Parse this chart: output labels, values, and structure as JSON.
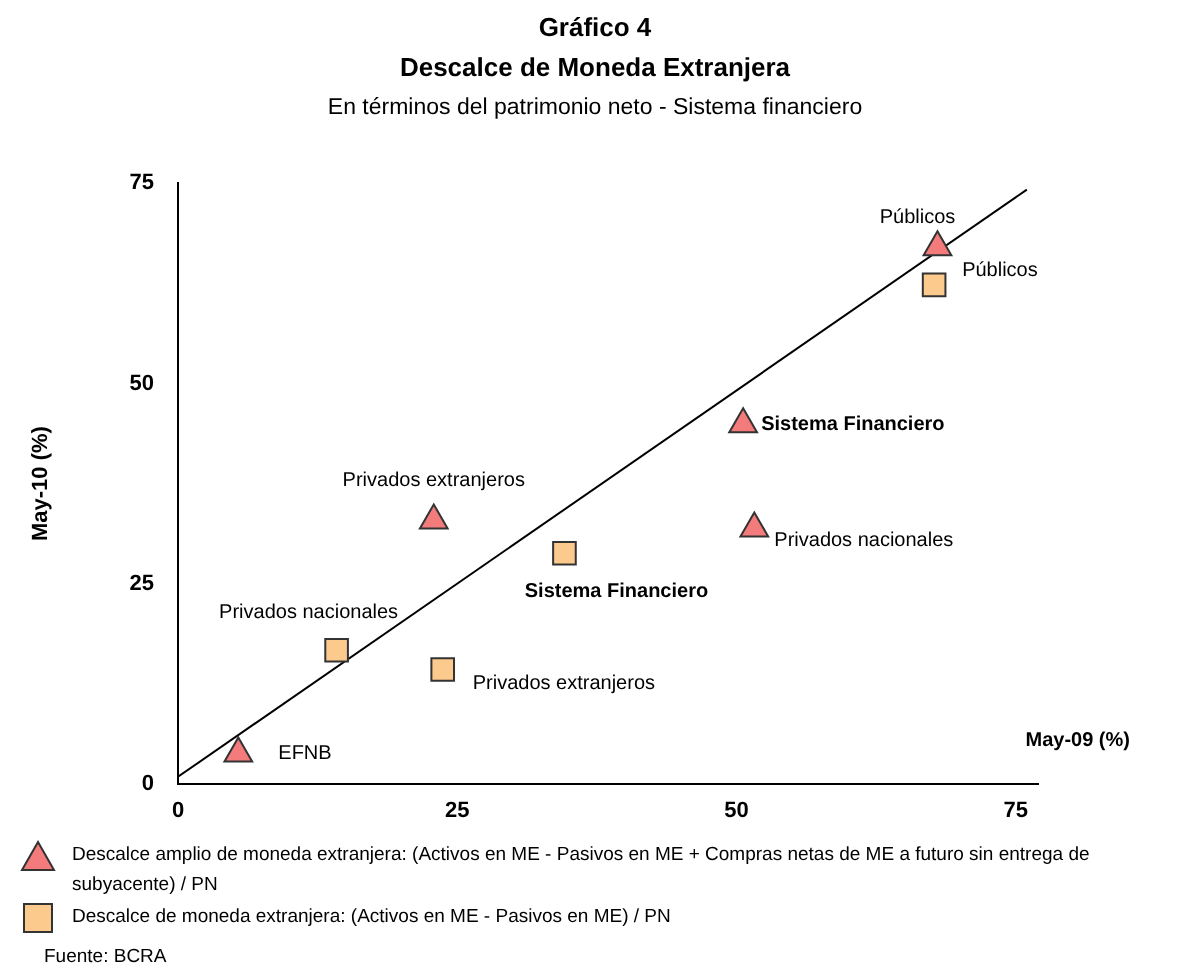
{
  "chart_data": {
    "type": "scatter",
    "title": "Gráfico 4\nDescalce de Moneda Extranjera",
    "subtitle": "En términos del patrimonio neto - Sistema financiero",
    "xlabel": "May-09 (%)",
    "ylabel": "May-10 (%)",
    "xlim": [
      0,
      77
    ],
    "ylim": [
      0,
      75
    ],
    "xticks": [
      0,
      25,
      50,
      75
    ],
    "yticks": [
      0,
      25,
      50,
      75
    ],
    "grid": false,
    "legend": "bottom",
    "series": [
      {
        "name": "Descalce amplio de moneda extranjera: (Activos en ME - Pasivos en ME + Compras netas de ME a futuro sin entrega de subyacente) / PN",
        "color": "#f37b7b",
        "marker": "triangle",
        "x": [
          5.4,
          22.9,
          50.6,
          51.6,
          68
        ],
        "values": [
          3.8,
          32.9,
          44.9,
          31.9,
          67
        ]
      },
      {
        "name": "Descalce de moneda extranjera: (Activos en ME - Pasivos en ME) / PN",
        "color": "#fdca8e",
        "marker": "square",
        "x": [
          14.2,
          23.7,
          34.6,
          67.7
        ],
        "values": [
          16.7,
          14.3,
          28.8,
          62.3
        ]
      },
      {
        "type": "line",
        "color": "#000000",
        "marker": "none",
        "x": [
          0,
          76
        ],
        "values": [
          0.9,
          74.2
        ]
      }
    ],
    "annotations": [
      {
        "text": "EFNB",
        "x": 5.4,
        "y": 3.8
      },
      {
        "text": "Privados extranjeros",
        "x": 22.9,
        "y": 32.9
      },
      {
        "text": "Sistema Financiero",
        "x": 50.6,
        "y": 44.9
      },
      {
        "text": "Privados nacionales",
        "x": 51.6,
        "y": 31.9
      },
      {
        "text": "Públicos",
        "x": 68,
        "y": 67
      },
      {
        "text": "Privados nacionales",
        "x": 14.2,
        "y": 16.7
      },
      {
        "text": "Privados extranjeros",
        "x": 23.7,
        "y": 14.3
      },
      {
        "text": "Sistema Financiero",
        "x": 34.6,
        "y": 28.8
      },
      {
        "text": "Públicos",
        "x": 67.7,
        "y": 62.3
      },
      "Fuente: BCRA"
    ]
  }
}
